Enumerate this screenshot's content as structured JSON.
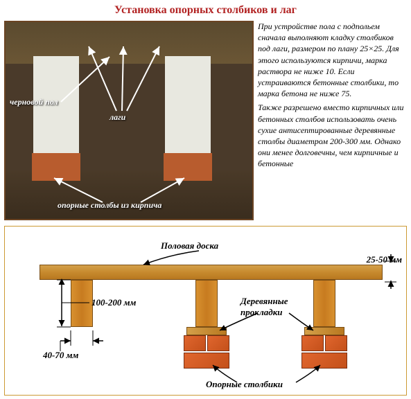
{
  "title": "Установка опорных столбиков и лаг",
  "photo": {
    "labels": {
      "subfloor": "черновой пол",
      "joists": "лаги",
      "brick_piers": "опорные столбы из кирпича"
    }
  },
  "description": {
    "p1": "При устройстве пола с подпольем сначала выполняют кладку столбиков под лаги, размером по плану 25×25. Для этого используются кирпичи, марка раствора не ниже 10. Если устраиваются бетонные столбики, то марка бетона не ниже 75.",
    "p2": "Также разрешено вместо кирпичных или бетонных столбов использовать очень сухие антисептированные деревянные столбы диаметром 200-300 мм. Однако они менее долговечны, чем кирпичные и бетонные"
  },
  "diagram": {
    "labels": {
      "floorboard": "Половая доска",
      "wood_spacers": "Деревянные прокладки",
      "support_piers": "Опорные столбики"
    },
    "dimensions": {
      "board_thickness": "25-50 мм",
      "lag_height": "100-200 мм",
      "lag_width": "40-70 мм"
    },
    "colors": {
      "wood": "#c78a2e",
      "brick": "#d4551e",
      "border": "#cc9933"
    }
  }
}
